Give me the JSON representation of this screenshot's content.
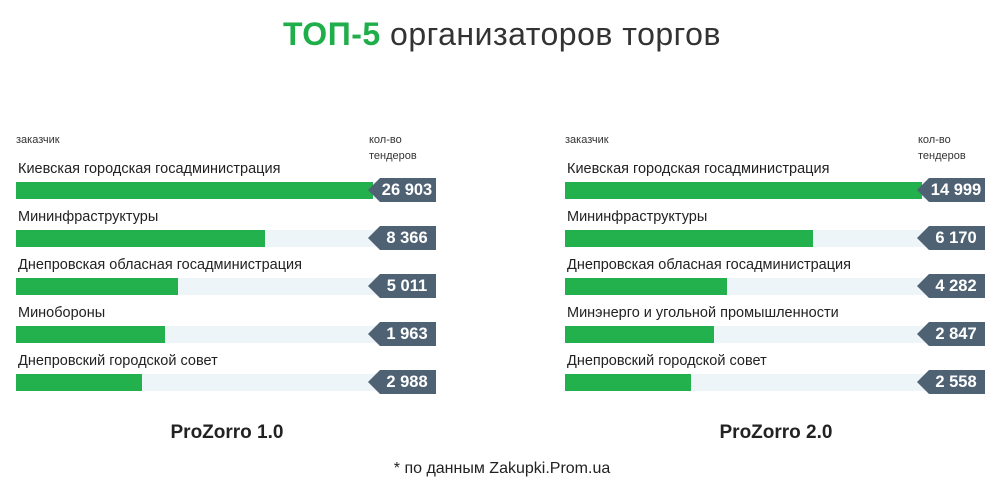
{
  "header": {
    "title_accent": "ТОП-5",
    "title_rest": "организаторов торгов"
  },
  "footnote": "* по данным Zakupki.Prom.ua",
  "colors": {
    "accent": "#1fae4a",
    "bar": "#22b14c",
    "badge": "#4f6274",
    "track": "#eef5f9"
  },
  "chart_data": [
    {
      "type": "bar",
      "orientation": "horizontal",
      "title": "ProZorro 1.0",
      "col_category_label": "заказчик",
      "col_value_label": "кол-во тендеров",
      "categories": [
        "Киевская городская госадминистрация",
        "Мининфраструктуры",
        "Днепровская обласная госадминистрация",
        "Минобороны",
        "Днепровский городской совет"
      ],
      "values": [
        26903,
        8366,
        5011,
        1963,
        2988
      ],
      "value_labels": [
        "26 903",
        "8 366",
        "5 011",
        "1 963",
        "2 988"
      ],
      "bar_fraction": [
        0.98,
        0.685,
        0.445,
        0.41,
        0.345
      ]
    },
    {
      "type": "bar",
      "orientation": "horizontal",
      "title": "ProZorro 2.0",
      "col_category_label": "заказчик",
      "col_value_label": "кол-во тендеров",
      "categories": [
        "Киевская городская госадминистрация",
        "Мининфраструктуры",
        "Днепровская обласная госадминистрация",
        "Минэнерго и угольной промышленности",
        "Днепровский городской совет"
      ],
      "values": [
        14999,
        6170,
        4282,
        2847,
        2558
      ],
      "value_labels": [
        "14 999",
        "6 170",
        "4 282",
        "2 847",
        "2 558"
      ],
      "bar_fraction": [
        0.98,
        0.68,
        0.445,
        0.41,
        0.345
      ]
    }
  ]
}
